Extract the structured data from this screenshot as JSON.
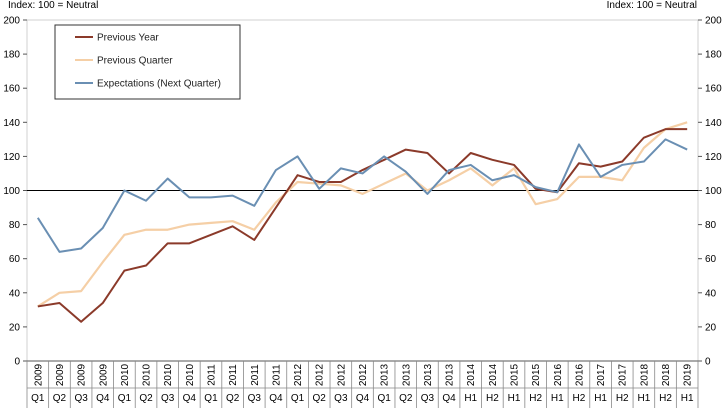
{
  "chart_data": {
    "type": "line",
    "unit_label_left": "Index: 100 = Neutral",
    "unit_label_right": "Index: 100 = Neutral",
    "ylim": [
      0,
      200
    ],
    "yticks": [
      0,
      20,
      40,
      60,
      80,
      100,
      120,
      140,
      160,
      180,
      200
    ],
    "reference_line": 100,
    "legend_position": "top-left",
    "x_years": [
      "2009",
      "2009",
      "2009",
      "2009",
      "2010",
      "2010",
      "2010",
      "2010",
      "2011",
      "2011",
      "2011",
      "2011",
      "2012",
      "2012",
      "2012",
      "2012",
      "2013",
      "2013",
      "2013",
      "2013",
      "2014",
      "2014",
      "2015",
      "2015",
      "2016",
      "2016",
      "2017",
      "2017",
      "2018",
      "2018",
      "2019"
    ],
    "x_periods": [
      "Q1",
      "Q2",
      "Q3",
      "Q4",
      "Q1",
      "Q2",
      "Q3",
      "Q4",
      "Q1",
      "Q2",
      "Q3",
      "Q4",
      "Q1",
      "Q2",
      "Q3",
      "Q4",
      "Q1",
      "Q2",
      "Q3",
      "Q4",
      "H1",
      "H2",
      "H1",
      "H2",
      "H1",
      "H2",
      "H1",
      "H2",
      "H1",
      "H2",
      "H1"
    ],
    "series": [
      {
        "name": "Previous Year",
        "color": "#8b3a2a",
        "values": [
          32,
          34,
          23,
          34,
          53,
          56,
          69,
          69,
          74,
          79,
          71,
          90,
          109,
          105,
          105,
          112,
          118,
          124,
          122,
          110,
          122,
          118,
          115,
          101,
          99,
          116,
          114,
          117,
          131,
          136,
          136
        ]
      },
      {
        "name": "Previous Quarter",
        "color": "#f5cfa6",
        "values": [
          32,
          40,
          41,
          58,
          74,
          77,
          77,
          80,
          81,
          82,
          77,
          93,
          105,
          104,
          103,
          98,
          104,
          110,
          100,
          106,
          113,
          103,
          113,
          92,
          95,
          108,
          108,
          106,
          125,
          136,
          140
        ]
      },
      {
        "name": "Expectations (Next Quarter)",
        "color": "#6a8fb3",
        "values": [
          84,
          64,
          66,
          78,
          100,
          94,
          107,
          96,
          96,
          97,
          91,
          112,
          120,
          101,
          113,
          110,
          120,
          111,
          98,
          112,
          115,
          106,
          109,
          102,
          99,
          127,
          108,
          115,
          117,
          130,
          124
        ]
      }
    ]
  }
}
